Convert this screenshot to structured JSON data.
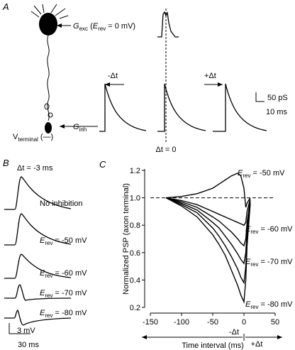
{
  "panel_a": {
    "label": "A",
    "gexc": {
      "symbol": "G",
      "subscript": "exc",
      "text1": " (",
      "symbol2": "E",
      "subscript2": "rev",
      "text2": " = 0 mV)"
    },
    "minus_dt": "-Δt",
    "plus_dt": "+Δt",
    "scale_y": "50 pS",
    "scale_x": "10 ms",
    "ginh": {
      "symbol": "G",
      "subscript": "inh"
    },
    "vterminal": {
      "symbol": "V",
      "subscript": "terminal",
      "text": " (—)"
    },
    "dt_zero": "Δt = 0"
  },
  "panel_b": {
    "label": "B",
    "dt": "Δt = -3 ms",
    "no_inhibition": "No inhibition",
    "traces": [
      {
        "symbol": "E",
        "subscript": "rev",
        "text": " = -50 mV"
      },
      {
        "symbol": "E",
        "subscript": "rev",
        "text": " = -60 mV"
      },
      {
        "symbol": "E",
        "subscript": "rev",
        "text": " = -70 mV"
      },
      {
        "symbol": "E",
        "subscript": "rev",
        "text": " = -80 mV"
      }
    ],
    "scale_y": "3 mV",
    "scale_x": "30 ms"
  },
  "chart_data": {
    "type": "line",
    "panel_label": "C",
    "xlabel": "Time interval (ms)",
    "ylabel": "Normalized PSP (axon terminal)",
    "x": [
      -125,
      -100,
      -75,
      -50,
      -40,
      -30,
      -20,
      -10,
      -5,
      0,
      3,
      5,
      10
    ],
    "series": [
      {
        "color": "#000000",
        "values": [
          1,
          1.01,
          1.03,
          1.07,
          1.1,
          1.13,
          1.16,
          1.18,
          1.16,
          1.07,
          0.93,
          0.96,
          1.0
        ]
      },
      {
        "color": "#000000",
        "values": [
          1,
          0.98,
          0.95,
          0.9,
          0.88,
          0.86,
          0.84,
          0.82,
          0.81,
          0.8,
          0.82,
          0.9,
          0.99
        ]
      },
      {
        "color": "#000000",
        "values": [
          1,
          0.97,
          0.93,
          0.86,
          0.83,
          0.79,
          0.75,
          0.7,
          0.67,
          0.65,
          0.7,
          0.82,
          0.98
        ]
      },
      {
        "color": "#000000",
        "values": [
          1,
          0.96,
          0.91,
          0.82,
          0.78,
          0.72,
          0.66,
          0.59,
          0.55,
          0.52,
          0.6,
          0.76,
          0.97
        ]
      },
      {
        "color": "#000000",
        "values": [
          1,
          0.95,
          0.89,
          0.78,
          0.72,
          0.65,
          0.57,
          0.48,
          0.42,
          0.38,
          0.5,
          0.7,
          0.96
        ]
      },
      {
        "color": "#000000",
        "values": [
          1,
          0.94,
          0.86,
          0.73,
          0.66,
          0.58,
          0.47,
          0.36,
          0.29,
          0.24,
          0.4,
          0.65,
          0.95
        ]
      }
    ],
    "annotations": [
      {
        "symbol": "E",
        "subscript": "rev",
        "text": " = -50 mV"
      },
      {
        "symbol": "E",
        "subscript": "rev",
        "text": " = -60 mV"
      },
      {
        "symbol": "E",
        "subscript": "rev",
        "text": " = -70 mV"
      },
      {
        "symbol": "E",
        "subscript": "rev",
        "text": " = -80 mV"
      }
    ],
    "reference_line": 1,
    "x_arrow_labels": [
      "-Δt",
      "+Δt"
    ],
    "xlim": [
      -150,
      50
    ],
    "xticks": [
      -150,
      -100,
      -50,
      0,
      50
    ],
    "ylim": [
      0.2,
      1.2
    ],
    "yticks": [
      0.2,
      0.4,
      0.6,
      0.8,
      {
        "value": 1,
        "label": "1.0"
      },
      1.2
    ]
  }
}
